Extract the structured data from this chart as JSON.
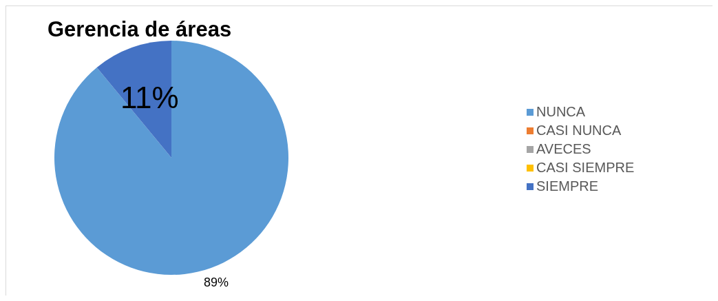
{
  "chart_data": {
    "type": "pie",
    "title": "Gerencia de áreas",
    "categories": [
      "NUNCA",
      "CASI NUNCA",
      "AVECES",
      "CASI SIEMPRE",
      "SIEMPRE"
    ],
    "values": [
      89,
      0,
      0,
      0,
      11
    ],
    "colors": [
      "#5b9bd5",
      "#ed7d31",
      "#a5a5a5",
      "#ffc000",
      "#4472c4"
    ],
    "value_labels": [
      "89%",
      null,
      null,
      null,
      "11%"
    ],
    "legend": "right"
  }
}
